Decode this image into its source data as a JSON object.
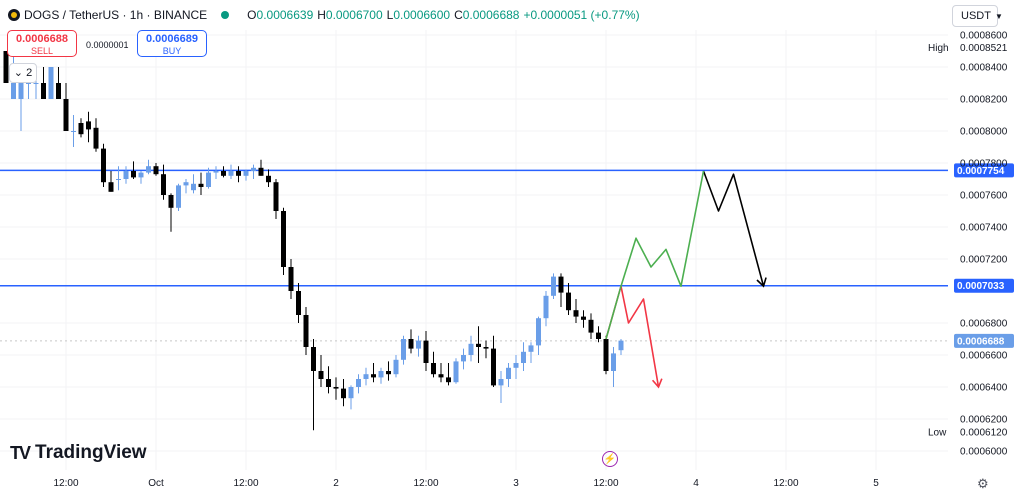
{
  "header": {
    "symbol": "DOGS / TetherUS · 1h · BINANCE",
    "o_label": "O",
    "o_value": "0.0006639",
    "h_label": "H",
    "h_value": "0.0006700",
    "l_label": "L",
    "l_value": "0.0006600",
    "c_label": "C",
    "c_value": "0.0006688",
    "change": "+0.0000051 (+0.77%)"
  },
  "trade": {
    "sell_price": "0.0006688",
    "sell_label": "SELL",
    "buy_price": "0.0006689",
    "buy_label": "BUY",
    "spread": "0.0000001"
  },
  "collapse_count": "2",
  "currency": "USDT",
  "brand": "TradingView",
  "colors": {
    "up": "#6a9ee8",
    "down": "#000000",
    "level": "#2962ff",
    "bull_path": "#4caf50",
    "bear_path": "#f23645",
    "projection": "#000000"
  },
  "chart_data": {
    "type": "candlestick",
    "ylim": [
      0.0006,
      0.00086
    ],
    "y_ticks": [
      "0.0006000",
      "0.0006200",
      "0.0006400",
      "0.0006600",
      "0.0006800",
      "0.0007200",
      "0.0007400",
      "0.0007600",
      "0.0007800",
      "0.0008000",
      "0.0008200",
      "0.0008400",
      "0.0008600"
    ],
    "x_ticks": [
      {
        "label": "12:00",
        "i": 8
      },
      {
        "label": "Oct",
        "i": 20
      },
      {
        "label": "12:00",
        "i": 32
      },
      {
        "label": "2",
        "i": 44
      },
      {
        "label": "12:00",
        "i": 56
      },
      {
        "label": "3",
        "i": 68
      },
      {
        "label": "12:00",
        "i": 80
      },
      {
        "label": "4",
        "i": 92
      },
      {
        "label": "12:00",
        "i": 104
      },
      {
        "label": "5",
        "i": 116
      }
    ],
    "high": {
      "label": "High",
      "value": "0.0008521",
      "y": 0.0008521
    },
    "low": {
      "label": "Low",
      "value": "0.0006120",
      "y": 0.000612
    },
    "levels": [
      {
        "label": "0.0007754",
        "y": 0.0007754
      },
      {
        "label": "0.0007033",
        "y": 0.0007033
      }
    ],
    "last_price": {
      "label": "0.0006688",
      "y": 0.0006688
    },
    "candles": [
      [
        0.00085,
        0.00085,
        0.00083,
        0.00083
      ],
      [
        0.00082,
        0.00085,
        0.00082,
        0.00083
      ],
      [
        0.00082,
        0.00083,
        0.0008,
        0.00083
      ],
      [
        0.00083,
        0.00084,
        0.00082,
        0.00083
      ],
      [
        0.00083,
        0.00084,
        0.00082,
        0.00083
      ],
      [
        0.00083,
        0.00084,
        0.00082,
        0.00082
      ],
      [
        0.00082,
        0.00084,
        0.00082,
        0.00084
      ],
      [
        0.00083,
        0.00084,
        0.00082,
        0.00082
      ],
      [
        0.00082,
        0.00083,
        0.0008,
        0.0008
      ],
      [
        0.0008,
        0.00081,
        0.00079,
        0.0008
      ],
      [
        0.000805,
        0.000808,
        0.000796,
        0.000798
      ],
      [
        0.000806,
        0.000812,
        0.000793,
        0.000801
      ],
      [
        0.000802,
        0.000808,
        0.000787,
        0.000789
      ],
      [
        0.000789,
        0.000792,
        0.000765,
        0.000768
      ],
      [
        0.000768,
        0.000775,
        0.000762,
        0.000762
      ],
      [
        0.00077,
        0.000778,
        0.000763,
        0.00077
      ],
      [
        0.00077,
        0.000778,
        0.000767,
        0.000775
      ],
      [
        0.000775,
        0.000781,
        0.00077,
        0.000771
      ],
      [
        0.000771,
        0.000775,
        0.000767,
        0.000774
      ],
      [
        0.000774,
        0.000782,
        0.000773,
        0.000778
      ],
      [
        0.000778,
        0.00078,
        0.000772,
        0.000773
      ],
      [
        0.000773,
        0.000779,
        0.000757,
        0.00076
      ],
      [
        0.00076,
        0.000761,
        0.000737,
        0.000752
      ],
      [
        0.000752,
        0.000767,
        0.00075,
        0.000766
      ],
      [
        0.000766,
        0.00077,
        0.000761,
        0.000768
      ],
      [
        0.000763,
        0.000773,
        0.000761,
        0.000767
      ],
      [
        0.000767,
        0.000774,
        0.00076,
        0.000765
      ],
      [
        0.000765,
        0.000777,
        0.000764,
        0.000774
      ],
      [
        0.000774,
        0.000778,
        0.00077,
        0.000775
      ],
      [
        0.000775,
        0.000778,
        0.000771,
        0.000772
      ],
      [
        0.000772,
        0.000779,
        0.00077,
        0.000775
      ],
      [
        0.000775,
        0.000778,
        0.000768,
        0.000772
      ],
      [
        0.000772,
        0.000776,
        0.000769,
        0.000775
      ],
      [
        0.000775,
        0.000779,
        0.00077,
        0.000777
      ],
      [
        0.000777,
        0.000782,
        0.000772,
        0.000772
      ],
      [
        0.000772,
        0.000776,
        0.000765,
        0.000768
      ],
      [
        0.000768,
        0.00077,
        0.000745,
        0.00075
      ],
      [
        0.00075,
        0.000752,
        0.00071,
        0.000715
      ],
      [
        0.000715,
        0.00072,
        0.000695,
        0.0007
      ],
      [
        0.0007,
        0.000705,
        0.00068,
        0.000685
      ],
      [
        0.000685,
        0.00069,
        0.00066,
        0.000665
      ],
      [
        0.000665,
        0.00067,
        0.000613,
        0.00065
      ],
      [
        0.00065,
        0.00066,
        0.00064,
        0.000645
      ],
      [
        0.000645,
        0.000653,
        0.000636,
        0.00064
      ],
      [
        0.00064,
        0.000646,
        0.000632,
        0.000639
      ],
      [
        0.000639,
        0.000645,
        0.000628,
        0.000633
      ],
      [
        0.000633,
        0.000641,
        0.000626,
        0.00064
      ],
      [
        0.00064,
        0.000648,
        0.000636,
        0.000645
      ],
      [
        0.000645,
        0.000652,
        0.000641,
        0.000648
      ],
      [
        0.000648,
        0.000655,
        0.000643,
        0.000646
      ],
      [
        0.000646,
        0.000652,
        0.000642,
        0.00065
      ],
      [
        0.00065,
        0.000656,
        0.000644,
        0.000648
      ],
      [
        0.000648,
        0.00066,
        0.000646,
        0.000657
      ],
      [
        0.000657,
        0.000672,
        0.000654,
        0.00067
      ],
      [
        0.00067,
        0.000676,
        0.000661,
        0.000664
      ],
      [
        0.000664,
        0.000672,
        0.000659,
        0.000669
      ],
      [
        0.000669,
        0.000675,
        0.00065,
        0.000655
      ],
      [
        0.000655,
        0.000662,
        0.000646,
        0.000648
      ],
      [
        0.000648,
        0.000655,
        0.000643,
        0.000646
      ],
      [
        0.000646,
        0.000655,
        0.000641,
        0.000643
      ],
      [
        0.000643,
        0.000658,
        0.000642,
        0.000656
      ],
      [
        0.000656,
        0.000664,
        0.000651,
        0.00066
      ],
      [
        0.00066,
        0.000672,
        0.000656,
        0.000667
      ],
      [
        0.000667,
        0.000678,
        0.000655,
        0.000665
      ],
      [
        0.000665,
        0.000669,
        0.000658,
        0.000664
      ],
      [
        0.000664,
        0.000672,
        0.00064,
        0.000641
      ],
      [
        0.000641,
        0.00065,
        0.00063,
        0.000645
      ],
      [
        0.000645,
        0.000655,
        0.00064,
        0.000652
      ],
      [
        0.000652,
        0.00066,
        0.000645,
        0.000655
      ],
      [
        0.000655,
        0.000668,
        0.00065,
        0.000662
      ],
      [
        0.000662,
        0.000668,
        0.000655,
        0.000666
      ],
      [
        0.000666,
        0.000684,
        0.00066,
        0.000683
      ],
      [
        0.000683,
        0.0007,
        0.000678,
        0.000697
      ],
      [
        0.000697,
        0.000711,
        0.000695,
        0.000709
      ],
      [
        0.000709,
        0.000711,
        0.00069,
        0.000699
      ],
      [
        0.000699,
        0.000705,
        0.000685,
        0.000688
      ],
      [
        0.000688,
        0.000695,
        0.00068,
        0.000684
      ],
      [
        0.000684,
        0.000688,
        0.000677,
        0.000682
      ],
      [
        0.000682,
        0.000686,
        0.00067,
        0.000674
      ],
      [
        0.000674,
        0.000678,
        0.000668,
        0.00067
      ],
      [
        0.00067,
        0.000672,
        0.000648,
        0.00065
      ],
      [
        0.00065,
        0.000665,
        0.00064,
        0.000661
      ],
      [
        0.000663,
        0.00067,
        0.00066,
        0.000669
      ]
    ],
    "bull_path": [
      [
        80,
        0.00067
      ],
      [
        82,
        0.000703
      ],
      [
        84,
        0.000733
      ],
      [
        86,
        0.000715
      ],
      [
        88,
        0.000726
      ],
      [
        90,
        0.000703
      ],
      [
        93,
        0.000775
      ]
    ],
    "bear_path": [
      [
        80,
        0.00067
      ],
      [
        82,
        0.000703
      ],
      [
        83,
        0.00068
      ],
      [
        85,
        0.000695
      ],
      [
        87,
        0.00064
      ]
    ],
    "projection": [
      [
        93,
        0.000775
      ],
      [
        95,
        0.00075
      ],
      [
        97,
        0.000773
      ],
      [
        101,
        0.000703
      ]
    ]
  }
}
